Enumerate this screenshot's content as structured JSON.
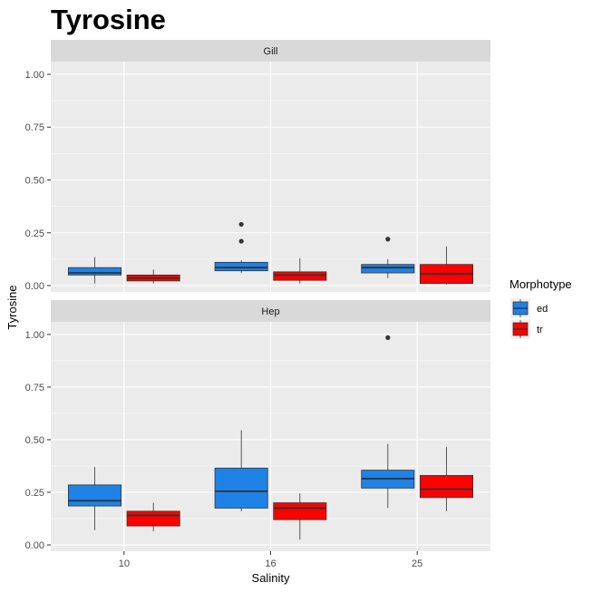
{
  "chart_data": {
    "type": "boxplot",
    "title": "Tyrosine",
    "xlabel": "Salinity",
    "ylabel": "Tyrosine",
    "categories": [
      "10",
      "16",
      "25"
    ],
    "ylim": [
      -0.03,
      1.06
    ],
    "yticks": [
      "0.00",
      "0.25",
      "0.50",
      "0.75",
      "1.00"
    ],
    "grid": true,
    "legend": {
      "title": "Morphotype",
      "position": "right",
      "entries": [
        {
          "key": "ed",
          "label": "ed",
          "color": "#1e82e6"
        },
        {
          "key": "tr",
          "label": "tr",
          "color": "#ff0000"
        }
      ]
    },
    "panels": [
      {
        "label": "Gill",
        "boxes": [
          {
            "category": "10",
            "group": "ed",
            "min": 0.01,
            "q1": 0.05,
            "median": 0.06,
            "q3": 0.085,
            "max": 0.135,
            "outliers": []
          },
          {
            "category": "10",
            "group": "tr",
            "min": 0.01,
            "q1": 0.022,
            "median": 0.035,
            "q3": 0.05,
            "max": 0.075,
            "outliers": []
          },
          {
            "category": "16",
            "group": "ed",
            "min": 0.06,
            "q1": 0.07,
            "median": 0.085,
            "q3": 0.11,
            "max": 0.12,
            "outliers": [
              0.21,
              0.29
            ]
          },
          {
            "category": "16",
            "group": "tr",
            "min": 0.01,
            "q1": 0.025,
            "median": 0.05,
            "q3": 0.065,
            "max": 0.13,
            "outliers": []
          },
          {
            "category": "25",
            "group": "ed",
            "min": 0.035,
            "q1": 0.06,
            "median": 0.085,
            "q3": 0.1,
            "max": 0.125,
            "outliers": [
              0.22
            ]
          },
          {
            "category": "25",
            "group": "tr",
            "min": 0.005,
            "q1": 0.01,
            "median": 0.055,
            "q3": 0.1,
            "max": 0.185,
            "outliers": []
          }
        ]
      },
      {
        "label": "Hep",
        "boxes": [
          {
            "category": "10",
            "group": "ed",
            "min": 0.07,
            "q1": 0.185,
            "median": 0.21,
            "q3": 0.285,
            "max": 0.37,
            "outliers": []
          },
          {
            "category": "10",
            "group": "tr",
            "min": 0.065,
            "q1": 0.09,
            "median": 0.14,
            "q3": 0.16,
            "max": 0.2,
            "outliers": []
          },
          {
            "category": "16",
            "group": "ed",
            "min": 0.16,
            "q1": 0.175,
            "median": 0.255,
            "q3": 0.365,
            "max": 0.545,
            "outliers": []
          },
          {
            "category": "16",
            "group": "tr",
            "min": 0.025,
            "q1": 0.12,
            "median": 0.175,
            "q3": 0.2,
            "max": 0.245,
            "outliers": []
          },
          {
            "category": "25",
            "group": "ed",
            "min": 0.175,
            "q1": 0.27,
            "median": 0.315,
            "q3": 0.355,
            "max": 0.48,
            "outliers": [
              0.985
            ]
          },
          {
            "category": "25",
            "group": "tr",
            "min": 0.16,
            "q1": 0.225,
            "median": 0.265,
            "q3": 0.33,
            "max": 0.465,
            "outliers": []
          }
        ]
      }
    ]
  }
}
